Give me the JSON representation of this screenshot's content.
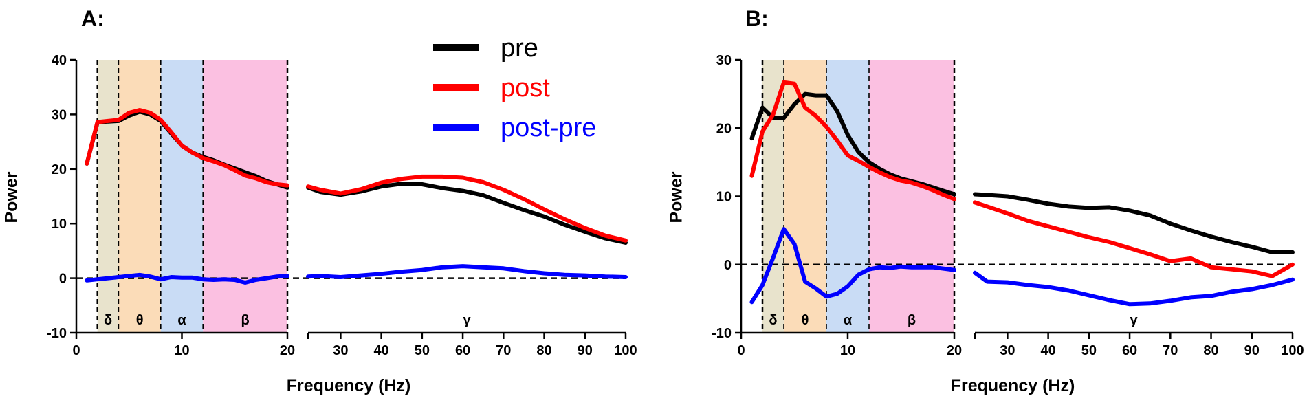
{
  "legend": [
    {
      "label": "pre",
      "color": "#000000"
    },
    {
      "label": "post",
      "color": "#ff0000"
    },
    {
      "label": "post-pre",
      "color": "#0000ff"
    }
  ],
  "colors": {
    "pre": "#000000",
    "post": "#ff0000",
    "diff": "#0000ff",
    "delta": "#e8e3cc",
    "theta": "#fbdcb8",
    "alpha": "#c9dcf5",
    "beta": "#fbc0e1"
  },
  "chart_data": [
    {
      "type": "line",
      "panel_label": "A:",
      "title": "",
      "xlabel": "Frequency (Hz)",
      "ylabel": "Power",
      "ylim": [
        -10,
        40
      ],
      "yticks": [
        -10,
        0,
        10,
        20,
        30,
        40
      ],
      "xlim_low": [
        0,
        20
      ],
      "xticks_low": [
        0,
        10,
        20
      ],
      "xlim_high": [
        22,
        100
      ],
      "xticks_high": [
        30,
        40,
        50,
        60,
        70,
        80,
        90,
        100
      ],
      "reference_line_y": 0,
      "bands": [
        {
          "label": "δ",
          "from": 2,
          "to": 4,
          "color_key": "delta"
        },
        {
          "label": "θ",
          "from": 4,
          "to": 8,
          "color_key": "theta"
        },
        {
          "label": "α",
          "from": 8,
          "to": 12,
          "color_key": "alpha"
        },
        {
          "label": "β",
          "from": 12,
          "to": 20,
          "color_key": "beta"
        }
      ],
      "gamma_label": "γ",
      "series": [
        {
          "name": "pre",
          "color_key": "pre",
          "low": {
            "x": [
              1,
              2,
              3,
              4,
              5,
              6,
              7,
              8,
              9,
              10,
              11,
              12,
              13,
              14,
              15,
              16,
              17,
              18,
              19,
              20
            ],
            "y": [
              21,
              28.5,
              28.7,
              28.8,
              29.8,
              30.5,
              30,
              28.8,
              26.5,
              24.3,
              23,
              22.2,
              21.6,
              20.8,
              20.1,
              19.4,
              18.7,
              17.8,
              17.2,
              16.6
            ]
          },
          "high": {
            "x": [
              22,
              25,
              30,
              35,
              40,
              45,
              50,
              55,
              60,
              65,
              70,
              75,
              80,
              85,
              90,
              95,
              100
            ],
            "y": [
              16.6,
              15.8,
              15.3,
              15.9,
              16.8,
              17.3,
              17.2,
              16.5,
              16,
              15.2,
              13.8,
              12.5,
              11.3,
              9.8,
              8.5,
              7.3,
              6.5
            ]
          }
        },
        {
          "name": "post",
          "color_key": "post",
          "low": {
            "x": [
              1,
              2,
              3,
              4,
              5,
              6,
              7,
              8,
              9,
              10,
              11,
              12,
              13,
              14,
              15,
              16,
              17,
              18,
              19,
              20
            ],
            "y": [
              21,
              28.6,
              28.8,
              29,
              30.3,
              30.8,
              30.3,
              29,
              26.7,
              24.3,
              23,
              22,
              21.4,
              20.7,
              19.8,
              18.8,
              18.3,
              17.6,
              17.2,
              17
            ]
          },
          "high": {
            "x": [
              22,
              25,
              30,
              35,
              40,
              45,
              50,
              55,
              60,
              65,
              70,
              75,
              80,
              85,
              90,
              95,
              100
            ],
            "y": [
              16.8,
              16.2,
              15.5,
              16.3,
              17.5,
              18.2,
              18.6,
              18.6,
              18.4,
              17.6,
              16.2,
              14.5,
              12.6,
              10.8,
              9.2,
              7.8,
              6.9
            ]
          }
        },
        {
          "name": "post-pre",
          "color_key": "diff",
          "low": {
            "x": [
              1,
              2,
              3,
              4,
              5,
              6,
              7,
              8,
              9,
              10,
              11,
              12,
              13,
              14,
              15,
              16,
              17,
              18,
              19,
              20
            ],
            "y": [
              -0.4,
              -0.2,
              0,
              0.2,
              0.4,
              0.6,
              0.3,
              -0.2,
              0.2,
              0.1,
              0.1,
              -0.2,
              -0.3,
              -0.2,
              -0.3,
              -0.8,
              -0.3,
              0,
              0.3,
              0.4
            ]
          },
          "high": {
            "x": [
              22,
              25,
              30,
              35,
              40,
              45,
              50,
              55,
              60,
              65,
              70,
              75,
              80,
              85,
              90,
              95,
              100
            ],
            "y": [
              0.3,
              0.4,
              0.2,
              0.5,
              0.8,
              1.2,
              1.5,
              2,
              2.2,
              2,
              1.8,
              1.3,
              0.9,
              0.6,
              0.5,
              0.3,
              0.2
            ]
          }
        }
      ]
    },
    {
      "type": "line",
      "panel_label": "B:",
      "title": "",
      "xlabel": "Frequency (Hz)",
      "ylabel": "Power",
      "ylim": [
        -10,
        30
      ],
      "yticks": [
        -10,
        0,
        10,
        20,
        30
      ],
      "xlim_low": [
        0,
        20
      ],
      "xticks_low": [
        0,
        10,
        20
      ],
      "xlim_high": [
        22,
        100
      ],
      "xticks_high": [
        30,
        40,
        50,
        60,
        70,
        80,
        90,
        100
      ],
      "reference_line_y": 0,
      "bands": [
        {
          "label": "δ",
          "from": 2,
          "to": 4,
          "color_key": "delta"
        },
        {
          "label": "θ",
          "from": 4,
          "to": 8,
          "color_key": "theta"
        },
        {
          "label": "α",
          "from": 8,
          "to": 12,
          "color_key": "alpha"
        },
        {
          "label": "β",
          "from": 12,
          "to": 20,
          "color_key": "beta"
        }
      ],
      "gamma_label": "γ",
      "series": [
        {
          "name": "pre",
          "color_key": "pre",
          "low": {
            "x": [
              1,
              2,
              3,
              4,
              5,
              6,
              7,
              8,
              9,
              10,
              11,
              12,
              13,
              14,
              15,
              16,
              17,
              18,
              19,
              20
            ],
            "y": [
              18.5,
              23,
              21.5,
              21.5,
              23.5,
              25,
              24.8,
              24.8,
              22.5,
              19,
              16.5,
              15,
              14,
              13.2,
              12.6,
              12.2,
              11.8,
              11.3,
              10.8,
              10.3
            ]
          },
          "high": {
            "x": [
              22,
              25,
              30,
              35,
              40,
              45,
              50,
              55,
              60,
              65,
              70,
              75,
              80,
              85,
              90,
              95,
              100
            ],
            "y": [
              10.3,
              10.2,
              10,
              9.5,
              8.9,
              8.5,
              8.3,
              8.4,
              7.9,
              7.2,
              6,
              5,
              4.1,
              3.3,
              2.6,
              1.8,
              1.8
            ]
          }
        },
        {
          "name": "post",
          "color_key": "post",
          "low": {
            "x": [
              1,
              2,
              3,
              4,
              5,
              6,
              7,
              8,
              9,
              10,
              11,
              12,
              13,
              14,
              15,
              16,
              17,
              18,
              19,
              20
            ],
            "y": [
              13,
              19.5,
              22,
              26.7,
              26.5,
              23,
              21.8,
              20.2,
              18.2,
              16,
              15.2,
              14.3,
              13.5,
              12.8,
              12.3,
              12,
              11.5,
              10.9,
              10.2,
              9.6
            ]
          },
          "high": {
            "x": [
              22,
              25,
              30,
              35,
              40,
              45,
              50,
              55,
              60,
              65,
              70,
              75,
              80,
              85,
              90,
              95,
              100
            ],
            "y": [
              9.1,
              8.5,
              7.5,
              6.4,
              5.6,
              4.8,
              4,
              3.3,
              2.4,
              1.5,
              0.5,
              0.9,
              -0.4,
              -0.7,
              -1,
              -1.7,
              0
            ]
          }
        },
        {
          "name": "post-pre",
          "color_key": "diff",
          "low": {
            "x": [
              1,
              2,
              3,
              4,
              5,
              6,
              7,
              8,
              9,
              10,
              11,
              12,
              13,
              14,
              15,
              16,
              17,
              18,
              19,
              20
            ],
            "y": [
              -5.5,
              -3,
              1,
              5.2,
              3,
              -2.5,
              -3.5,
              -4.7,
              -4.3,
              -3.2,
              -1.5,
              -0.7,
              -0.4,
              -0.5,
              -0.3,
              -0.4,
              -0.4,
              -0.4,
              -0.6,
              -0.8
            ]
          },
          "high": {
            "x": [
              22,
              25,
              30,
              35,
              40,
              45,
              50,
              55,
              60,
              65,
              70,
              75,
              80,
              85,
              90,
              95,
              100
            ],
            "y": [
              -1.2,
              -2.5,
              -2.6,
              -3,
              -3.3,
              -3.8,
              -4.5,
              -5.2,
              -5.8,
              -5.7,
              -5.3,
              -4.8,
              -4.6,
              -4,
              -3.6,
              -3,
              -2.2
            ]
          }
        }
      ]
    }
  ]
}
